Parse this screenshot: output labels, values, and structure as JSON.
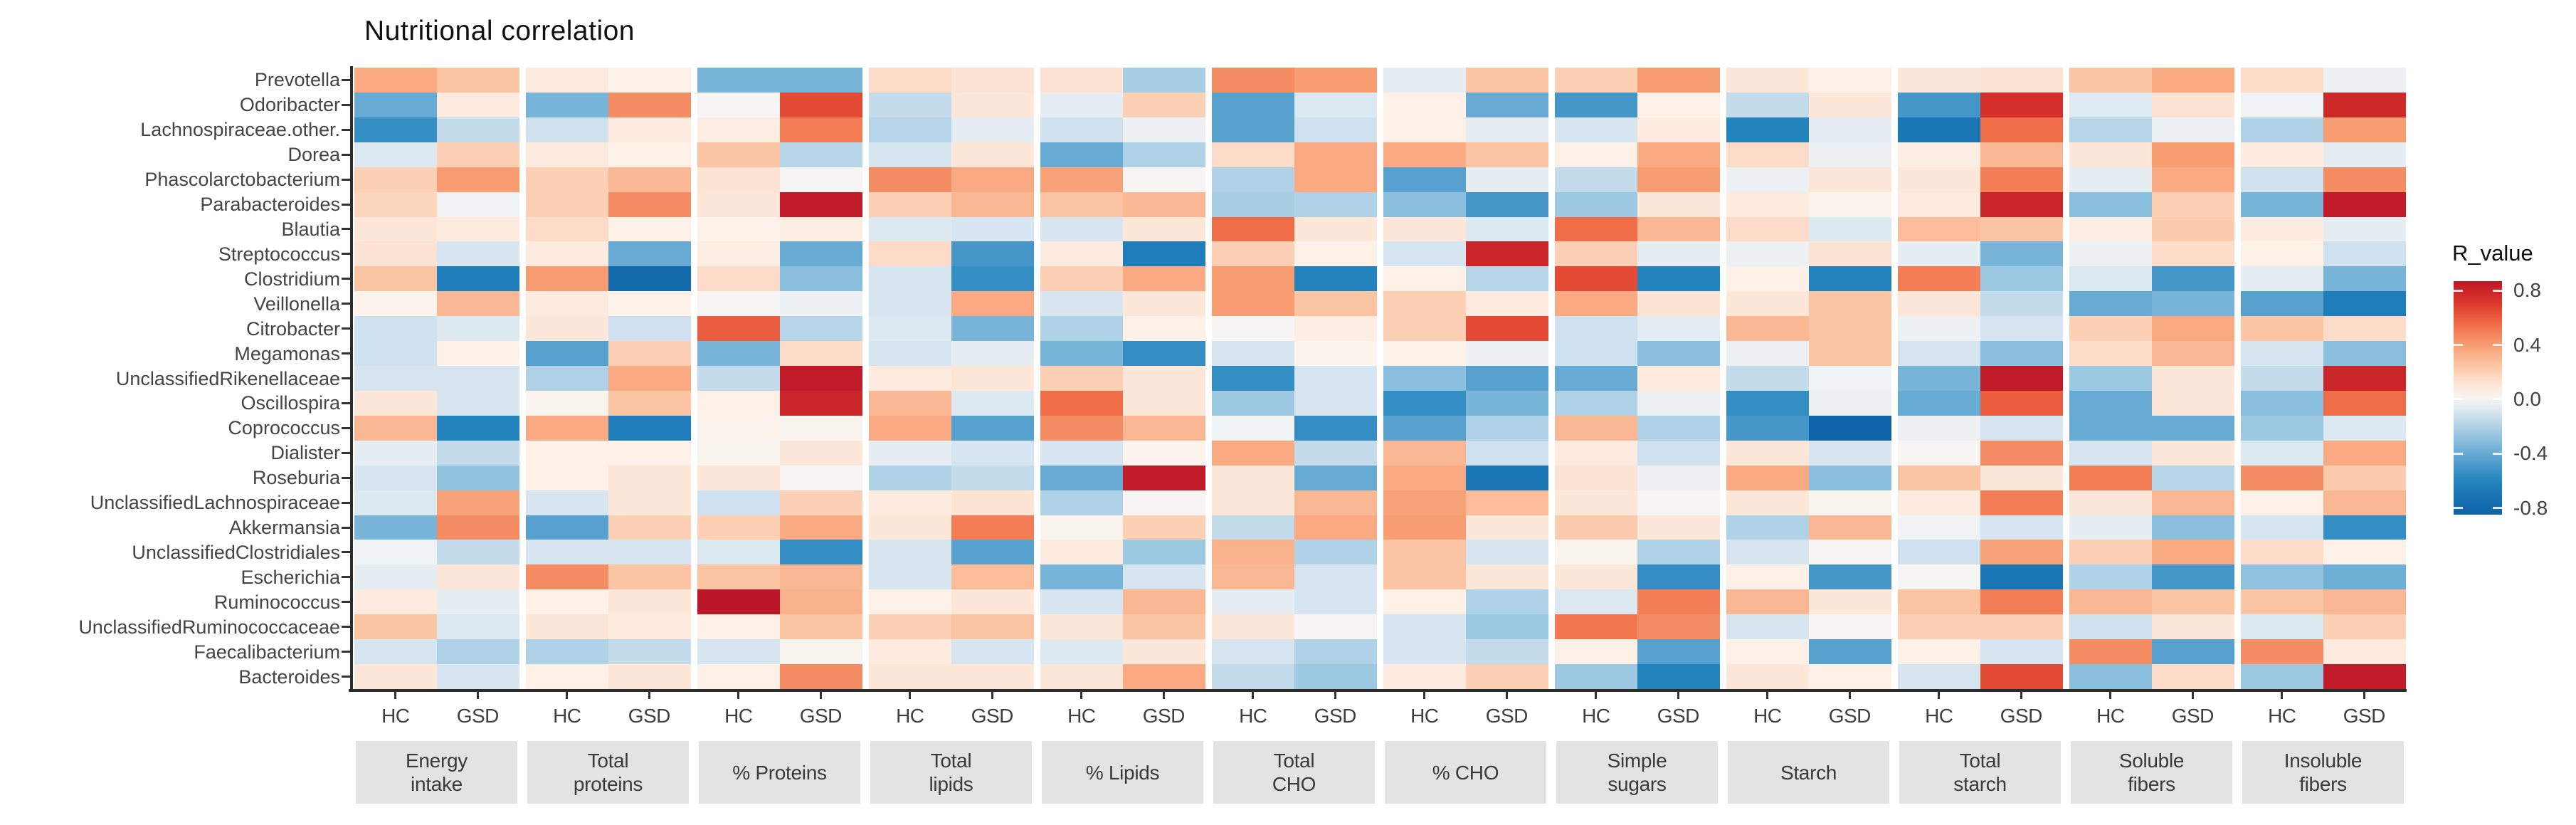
{
  "chart_data": {
    "type": "heatmap",
    "title": "Nutritional correlation",
    "rows": [
      "Prevotella",
      "Odoribacter",
      "Lachnospiraceae.other.",
      "Dorea",
      "Phascolarctobacterium",
      "Parabacteroides",
      "Blautia",
      "Streptococcus",
      "Clostridium",
      "Veillonella",
      "Citrobacter",
      "Megamonas",
      "UnclassifiedRikenellaceae",
      "Oscillospira",
      "Coprococcus",
      "Dialister",
      "Roseburia",
      "UnclassifiedLachnospiraceae",
      "Akkermansia",
      "UnclassifiedClostridiales",
      "Escherichia",
      "Ruminococcus",
      "UnclassifiedRuminococcaceae",
      "Faecalibacterium",
      "Bacteroides"
    ],
    "column_groups": [
      {
        "label": "Energy intake",
        "lines": [
          "Energy",
          "intake"
        ]
      },
      {
        "label": "Total proteins",
        "lines": [
          "Total",
          "proteins"
        ]
      },
      {
        "label": "% Proteins",
        "lines": [
          "% Proteins"
        ]
      },
      {
        "label": "Total lipids",
        "lines": [
          "Total",
          "lipids"
        ]
      },
      {
        "label": "% Lipids",
        "lines": [
          "% Lipids"
        ]
      },
      {
        "label": "Total CHO",
        "lines": [
          "Total",
          "CHO"
        ]
      },
      {
        "label": "% CHO",
        "lines": [
          "% CHO"
        ]
      },
      {
        "label": "Simple sugars",
        "lines": [
          "Simple",
          "sugars"
        ]
      },
      {
        "label": "Starch",
        "lines": [
          "Starch"
        ]
      },
      {
        "label": "Total starch",
        "lines": [
          "Total",
          "starch"
        ]
      },
      {
        "label": "Soluble fibers",
        "lines": [
          "Soluble",
          "fibers"
        ]
      },
      {
        "label": "Insoluble fibers",
        "lines": [
          "Insoluble",
          "fibers"
        ]
      }
    ],
    "subcolumns": [
      "HC",
      "GSD"
    ],
    "values": [
      [
        0.35,
        0.25,
        0.08,
        0.05,
        -0.35,
        -0.35,
        0.15,
        0.12,
        0.12,
        -0.22,
        0.45,
        0.4,
        -0.05,
        0.25,
        0.2,
        0.4,
        0.1,
        0.05,
        0.1,
        0.12,
        0.25,
        0.35,
        0.15,
        -0.03
      ],
      [
        -0.4,
        0.08,
        -0.35,
        0.45,
        0.0,
        0.65,
        -0.15,
        0.1,
        -0.05,
        0.2,
        -0.45,
        -0.08,
        0.05,
        -0.4,
        -0.5,
        0.05,
        -0.15,
        0.1,
        -0.5,
        0.75,
        -0.07,
        0.12,
        -0.02,
        0.78
      ],
      [
        -0.55,
        -0.15,
        -0.12,
        0.08,
        0.06,
        0.5,
        -0.18,
        -0.05,
        -0.12,
        -0.03,
        -0.45,
        -0.12,
        0.05,
        -0.05,
        -0.1,
        0.08,
        -0.6,
        -0.05,
        -0.7,
        0.55,
        -0.18,
        -0.03,
        -0.2,
        0.4
      ],
      [
        -0.08,
        0.2,
        0.08,
        0.05,
        0.25,
        -0.18,
        -0.1,
        0.1,
        -0.4,
        -0.2,
        0.15,
        0.35,
        0.35,
        0.25,
        0.05,
        0.35,
        0.15,
        -0.03,
        0.06,
        0.3,
        0.1,
        0.4,
        0.08,
        -0.05
      ],
      [
        0.2,
        0.4,
        0.2,
        0.3,
        0.12,
        0.0,
        0.45,
        0.35,
        0.38,
        0.0,
        -0.2,
        0.35,
        -0.45,
        -0.05,
        -0.15,
        0.4,
        -0.03,
        0.1,
        0.1,
        0.5,
        -0.05,
        0.35,
        -0.12,
        0.45
      ],
      [
        0.18,
        -0.02,
        0.2,
        0.45,
        0.1,
        0.85,
        0.2,
        0.3,
        0.25,
        0.3,
        -0.22,
        -0.2,
        -0.3,
        -0.5,
        -0.25,
        0.1,
        0.08,
        0.03,
        0.08,
        0.8,
        -0.3,
        0.2,
        -0.35,
        0.85
      ],
      [
        0.1,
        0.08,
        0.15,
        0.05,
        0.04,
        0.06,
        -0.08,
        -0.1,
        -0.1,
        0.1,
        0.55,
        0.1,
        0.1,
        -0.08,
        0.55,
        0.3,
        0.15,
        -0.08,
        0.28,
        0.25,
        0.06,
        0.22,
        0.08,
        -0.05
      ],
      [
        0.12,
        -0.1,
        0.08,
        -0.4,
        0.06,
        -0.4,
        0.15,
        -0.5,
        0.08,
        -0.65,
        0.2,
        0.05,
        -0.1,
        0.8,
        0.2,
        -0.05,
        -0.03,
        0.12,
        -0.05,
        -0.35,
        -0.03,
        0.15,
        0.05,
        -0.12
      ],
      [
        0.25,
        -0.65,
        0.4,
        -0.8,
        0.15,
        -0.3,
        -0.1,
        -0.55,
        0.2,
        0.35,
        0.4,
        -0.6,
        0.05,
        -0.18,
        0.65,
        -0.6,
        0.05,
        -0.6,
        0.5,
        -0.25,
        -0.08,
        -0.5,
        -0.05,
        -0.35
      ],
      [
        0.03,
        0.3,
        0.08,
        0.04,
        0.0,
        -0.03,
        -0.1,
        0.35,
        -0.1,
        0.1,
        0.4,
        0.25,
        0.2,
        0.08,
        0.35,
        0.12,
        0.1,
        0.25,
        0.1,
        -0.15,
        -0.4,
        -0.35,
        -0.45,
        -0.65
      ],
      [
        -0.12,
        -0.08,
        0.1,
        -0.12,
        0.6,
        -0.18,
        -0.08,
        -0.35,
        -0.2,
        0.05,
        0.0,
        0.06,
        0.2,
        0.65,
        -0.12,
        -0.06,
        0.3,
        0.25,
        -0.03,
        -0.1,
        0.2,
        0.35,
        0.25,
        0.15
      ],
      [
        -0.12,
        0.05,
        -0.45,
        0.2,
        -0.35,
        0.15,
        -0.1,
        -0.05,
        -0.35,
        -0.55,
        -0.1,
        0.03,
        0.04,
        -0.03,
        -0.12,
        -0.3,
        -0.03,
        0.25,
        -0.1,
        -0.3,
        0.15,
        0.3,
        -0.1,
        -0.3
      ],
      [
        -0.1,
        -0.1,
        -0.2,
        0.35,
        -0.15,
        0.85,
        0.08,
        0.1,
        0.2,
        0.1,
        -0.55,
        -0.1,
        -0.3,
        -0.45,
        -0.4,
        0.08,
        -0.15,
        -0.02,
        -0.35,
        0.85,
        -0.25,
        0.1,
        -0.15,
        0.8
      ],
      [
        0.1,
        -0.1,
        0.02,
        0.25,
        0.05,
        0.8,
        0.3,
        -0.08,
        0.55,
        0.1,
        -0.25,
        -0.1,
        -0.55,
        -0.35,
        -0.2,
        -0.03,
        -0.55,
        -0.03,
        -0.4,
        0.6,
        -0.4,
        0.1,
        -0.3,
        0.55
      ],
      [
        0.3,
        -0.6,
        0.35,
        -0.65,
        0.03,
        0.02,
        0.35,
        -0.45,
        0.45,
        0.3,
        -0.02,
        -0.55,
        -0.45,
        -0.2,
        0.3,
        -0.2,
        -0.5,
        -0.85,
        -0.03,
        -0.1,
        -0.4,
        -0.4,
        -0.25,
        -0.08
      ],
      [
        -0.05,
        -0.15,
        0.05,
        0.05,
        0.02,
        0.1,
        -0.05,
        -0.1,
        -0.1,
        0.03,
        0.35,
        -0.15,
        0.3,
        -0.12,
        0.08,
        -0.12,
        0.1,
        -0.1,
        0.0,
        0.45,
        -0.1,
        0.1,
        -0.08,
        0.35
      ],
      [
        -0.1,
        -0.28,
        0.05,
        0.1,
        0.1,
        0.0,
        -0.2,
        -0.15,
        -0.4,
        0.85,
        0.1,
        -0.4,
        0.35,
        -0.7,
        0.12,
        -0.03,
        0.35,
        -0.3,
        0.25,
        0.1,
        0.5,
        -0.18,
        0.45,
        0.22
      ],
      [
        -0.08,
        0.38,
        -0.1,
        0.1,
        -0.12,
        0.2,
        0.08,
        0.12,
        -0.2,
        0.0,
        0.1,
        0.3,
        0.38,
        0.28,
        0.1,
        0.0,
        0.1,
        0.02,
        0.08,
        0.5,
        0.1,
        0.3,
        0.05,
        0.3
      ],
      [
        -0.35,
        0.45,
        -0.45,
        0.2,
        0.2,
        0.35,
        0.1,
        0.5,
        0.02,
        0.2,
        -0.15,
        0.35,
        0.4,
        0.1,
        0.22,
        0.1,
        -0.2,
        0.3,
        -0.02,
        -0.1,
        -0.05,
        -0.3,
        -0.1,
        -0.55
      ],
      [
        -0.02,
        -0.15,
        -0.1,
        -0.1,
        -0.08,
        -0.55,
        -0.1,
        -0.45,
        0.08,
        -0.25,
        0.32,
        -0.2,
        0.25,
        -0.1,
        0.02,
        -0.2,
        -0.1,
        0.0,
        -0.12,
        0.38,
        0.2,
        0.35,
        0.15,
        0.05
      ],
      [
        -0.05,
        0.1,
        0.45,
        0.25,
        0.25,
        0.3,
        -0.1,
        0.28,
        -0.35,
        -0.1,
        0.3,
        -0.1,
        0.25,
        0.1,
        0.1,
        -0.55,
        0.05,
        -0.5,
        0.0,
        -0.7,
        -0.2,
        -0.5,
        -0.28,
        -0.38
      ],
      [
        0.08,
        -0.05,
        0.05,
        0.1,
        0.9,
        0.32,
        0.05,
        0.1,
        -0.1,
        0.3,
        -0.05,
        -0.1,
        0.05,
        -0.2,
        -0.08,
        0.5,
        0.3,
        0.1,
        0.25,
        0.5,
        0.3,
        0.25,
        0.25,
        0.3
      ],
      [
        0.25,
        -0.08,
        0.1,
        0.08,
        0.05,
        0.25,
        0.2,
        0.25,
        0.1,
        0.25,
        0.1,
        0.0,
        -0.1,
        -0.25,
        0.52,
        0.45,
        -0.1,
        0.0,
        0.2,
        0.2,
        -0.12,
        0.1,
        -0.08,
        0.2
      ],
      [
        -0.1,
        -0.2,
        -0.2,
        -0.15,
        -0.1,
        0.02,
        0.08,
        -0.1,
        -0.08,
        0.1,
        -0.1,
        -0.2,
        -0.1,
        -0.15,
        0.05,
        -0.45,
        0.05,
        -0.45,
        0.05,
        -0.1,
        0.45,
        -0.45,
        0.45,
        0.08
      ],
      [
        0.1,
        -0.1,
        0.05,
        0.1,
        0.05,
        0.45,
        0.1,
        0.1,
        0.1,
        0.35,
        -0.15,
        -0.25,
        0.08,
        0.2,
        -0.25,
        -0.6,
        0.1,
        0.05,
        -0.1,
        0.65,
        -0.3,
        0.15,
        -0.25,
        0.85
      ]
    ],
    "legend": {
      "title": "R_value",
      "tick_labels": [
        "0.8",
        "0.4",
        "0.0",
        "-0.4",
        "-0.8"
      ],
      "tick_values": [
        0.8,
        0.4,
        0.0,
        -0.4,
        -0.8
      ],
      "bar_range": [
        -0.85,
        0.87
      ]
    },
    "colors": {
      "axis": "#2b2b2b",
      "row_label": "#444444",
      "group_box_bg": "#e3e3e3",
      "group_box_text": "#3a3a3a",
      "palette_stops": [
        [
          -0.9,
          "#0a5da5"
        ],
        [
          -0.6,
          "#2383bd"
        ],
        [
          -0.4,
          "#67abd4"
        ],
        [
          -0.25,
          "#9cc8e2"
        ],
        [
          -0.12,
          "#cfe1ee"
        ],
        [
          -0.04,
          "#e9f0f4"
        ],
        [
          0.0,
          "#f7f5f3"
        ],
        [
          0.04,
          "#fdf2ea"
        ],
        [
          0.12,
          "#fce3d3"
        ],
        [
          0.25,
          "#fbc4a3"
        ],
        [
          0.4,
          "#f89d72"
        ],
        [
          0.55,
          "#f06e47"
        ],
        [
          0.7,
          "#dd3a2b"
        ],
        [
          0.85,
          "#c11a28"
        ],
        [
          0.95,
          "#b51226"
        ]
      ]
    }
  }
}
